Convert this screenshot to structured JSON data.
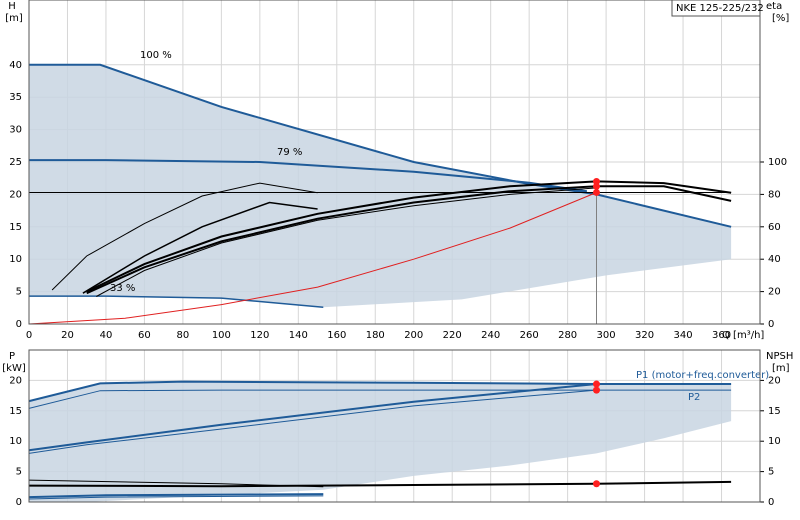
{
  "chart_data": [
    {
      "type": "line",
      "title": "NKE 125-225/232",
      "ylabel": "H",
      "ylabel_unit": "[m]",
      "y2label": "eta",
      "y2label_unit": "[%]",
      "xlabel": "Q [m³/h]",
      "xlim": [
        0,
        380
      ],
      "xticks": [
        0,
        20,
        40,
        60,
        80,
        100,
        120,
        140,
        160,
        180,
        200,
        220,
        240,
        260,
        280,
        300,
        320,
        340,
        360
      ],
      "xtick_labels": true,
      "ylim": [
        0,
        50
      ],
      "yticks": [
        0,
        5,
        10,
        15,
        20,
        25,
        30,
        35,
        40
      ],
      "y2lim": [
        0,
        200
      ],
      "y2ticks": [
        0,
        20,
        40,
        60,
        80,
        100
      ],
      "grid": true,
      "series": [
        {
          "color": "#c8d5e2",
          "fill": true,
          "axis": "y",
          "x": [
            0,
            37,
            100,
            200,
            260,
            295,
            365,
            365,
            300,
            225,
            153,
            100,
            40,
            0
          ],
          "values": [
            40,
            40,
            33.5,
            25,
            21.6,
            20,
            15,
            10,
            7.5,
            3.8,
            2.6,
            4,
            4.3,
            4.3
          ]
        },
        {
          "name": "100 %",
          "color": "#1f5b98",
          "width": 2,
          "axis": "y",
          "x": [
            0,
            37,
            100,
            200,
            260,
            295,
            365
          ],
          "values": [
            40,
            40,
            33.5,
            25,
            21.6,
            20,
            15
          ]
        },
        {
          "name": "79 %",
          "color": "#1f5b98",
          "width": 2,
          "axis": "y",
          "x": [
            0,
            40,
            120,
            200,
            260,
            290
          ],
          "values": [
            25.3,
            25.3,
            25,
            23.5,
            21.8,
            20.5
          ]
        },
        {
          "name": "33 %",
          "color": "#1f5b98",
          "width": 1.5,
          "axis": "y",
          "x": [
            0,
            40,
            100,
            153
          ],
          "values": [
            4.3,
            4.3,
            4,
            2.6
          ]
        },
        {
          "color": "#000000",
          "width": 1,
          "axis": "y",
          "x": [
            0,
            365
          ],
          "values": [
            20.3,
            20.3
          ]
        },
        {
          "color": "#e02020",
          "width": 1,
          "axis": "y",
          "x": [
            0,
            50,
            100,
            150,
            200,
            250,
            295
          ],
          "values": [
            0,
            0.9,
            3,
            5.7,
            10,
            14.8,
            20.3
          ]
        },
        {
          "color": "#808080",
          "width": 1,
          "axis": "y",
          "x": [
            295,
            295
          ],
          "values": [
            0,
            20.3
          ]
        },
        {
          "color": "#000000",
          "width": 2,
          "axis": "y2",
          "x": [
            30,
            60,
            100,
            150,
            200,
            250,
            295,
            330,
            365
          ],
          "values": [
            20,
            37,
            54,
            68,
            78,
            85,
            88,
            87,
            81
          ]
        },
        {
          "color": "#000000",
          "width": 2,
          "axis": "y2",
          "x": [
            30,
            60,
            100,
            150,
            200,
            250,
            295,
            330,
            365
          ],
          "values": [
            19,
            35,
            51,
            65,
            75,
            82,
            85,
            85,
            76
          ]
        },
        {
          "color": "#000000",
          "width": 1,
          "axis": "y2",
          "x": [
            12,
            30,
            60,
            90,
            120,
            150
          ],
          "values": [
            21,
            42,
            62,
            79,
            87,
            81
          ]
        },
        {
          "color": "#000000",
          "width": 1.5,
          "axis": "y2",
          "x": [
            28,
            60,
            90,
            125,
            150
          ],
          "values": [
            19,
            42,
            60,
            75,
            71
          ]
        },
        {
          "color": "#000000",
          "width": 1,
          "axis": "y2",
          "x": [
            35,
            60,
            100,
            150,
            200,
            250,
            295
          ],
          "values": [
            17,
            33,
            50,
            64,
            73,
            80,
            84
          ]
        },
        {
          "color": "#ff2020",
          "markers": true,
          "axis": "y",
          "x": [
            295
          ],
          "values": [
            20.3
          ]
        },
        {
          "color": "#ff2020",
          "markers": true,
          "axis": "y2",
          "x": [
            295,
            295
          ],
          "values": [
            88,
            85
          ]
        }
      ]
    },
    {
      "type": "line",
      "ylabel": "P",
      "ylabel_unit": "[kW]",
      "y2label": "NPSH",
      "y2label_unit": "[m]",
      "xlim": [
        0,
        380
      ],
      "xticks": [
        0,
        20,
        40,
        60,
        80,
        100,
        120,
        140,
        160,
        180,
        200,
        220,
        240,
        260,
        280,
        300,
        320,
        340,
        360
      ],
      "xtick_labels": false,
      "ylim": [
        0,
        25
      ],
      "yticks": [
        0,
        5,
        10,
        15,
        20
      ],
      "y2lim": [
        0,
        25
      ],
      "y2ticks": [
        0,
        5,
        10,
        15,
        20
      ],
      "grid": true,
      "series": [
        {
          "color": "#c8d5e2",
          "fill": true,
          "axis": "y",
          "x": [
            0,
            37,
            80,
            200,
            365,
            365,
            330,
            295,
            250,
            200,
            153,
            60,
            30,
            0
          ],
          "values": [
            16.6,
            19.5,
            19.8,
            19.6,
            19.4,
            13.3,
            10.5,
            8,
            6,
            4.3,
            2,
            0.5,
            0,
            0
          ]
        },
        {
          "name": "P1 (motor+freq.converter)",
          "color": "#1f5b98",
          "width": 2,
          "axis": "y",
          "x": [
            0,
            37,
            80,
            200,
            295,
            365
          ],
          "values": [
            16.6,
            19.5,
            19.8,
            19.6,
            19.4,
            19.4
          ]
        },
        {
          "name": "P2",
          "color": "#1f5b98",
          "width": 1,
          "axis": "y",
          "x": [
            0,
            37,
            100,
            295,
            365
          ],
          "values": [
            15.4,
            18.3,
            18.4,
            18.4,
            18.4
          ]
        },
        {
          "color": "#1f5b98",
          "width": 2,
          "axis": "y",
          "x": [
            0,
            30,
            100,
            200,
            295
          ],
          "values": [
            8.5,
            9.8,
            12.7,
            16.5,
            19.4
          ]
        },
        {
          "color": "#1f5b98",
          "width": 1,
          "axis": "y",
          "x": [
            0,
            30,
            100,
            200,
            295
          ],
          "values": [
            8,
            9.4,
            12,
            15.8,
            18.4
          ]
        },
        {
          "color": "#1f5b98",
          "width": 2,
          "axis": "y",
          "x": [
            0,
            40,
            153
          ],
          "values": [
            0.8,
            1.1,
            1.3
          ]
        },
        {
          "color": "#1f5b98",
          "width": 1,
          "axis": "y",
          "x": [
            0,
            40,
            153
          ],
          "values": [
            0.5,
            0.8,
            1
          ]
        },
        {
          "color": "#000000",
          "width": 2,
          "axis": "y2",
          "x": [
            0,
            100,
            200,
            295,
            365
          ],
          "values": [
            2.7,
            2.6,
            2.8,
            3,
            3.3
          ]
        },
        {
          "color": "#000000",
          "width": 1,
          "axis": "y2",
          "x": [
            0,
            100,
            153
          ],
          "values": [
            3.6,
            3,
            2.5
          ]
        },
        {
          "color": "#ff2020",
          "markers": true,
          "axis": "y",
          "x": [
            295,
            295
          ],
          "values": [
            19.4,
            18.4
          ]
        },
        {
          "color": "#ff2020",
          "markers": true,
          "axis": "y2",
          "x": [
            295
          ],
          "values": [
            3
          ]
        }
      ]
    }
  ]
}
